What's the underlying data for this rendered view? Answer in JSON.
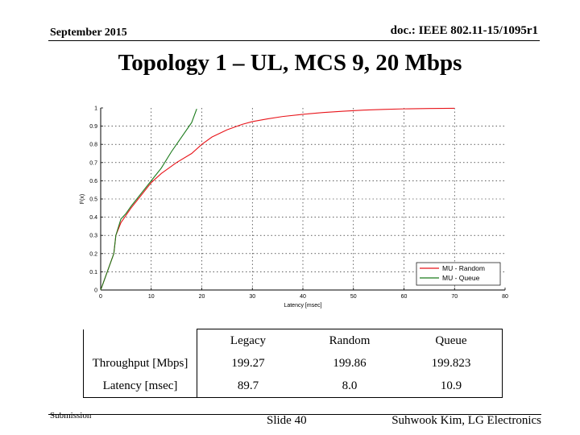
{
  "header": {
    "date": "September 2015",
    "doc": "doc.: IEEE 802.11-15/1095r1"
  },
  "title": "Topology 1 – UL, MCS 9, 20 Mbps",
  "chart_data": {
    "type": "line",
    "xlabel": "Latency [msec]",
    "ylabel": "F(x)",
    "xlim": [
      0,
      80
    ],
    "ylim": [
      0,
      1
    ],
    "xticks": [
      "0",
      "10",
      "20",
      "30",
      "40",
      "50",
      "60",
      "70",
      "80"
    ],
    "yticks": [
      "0",
      "0.1",
      "0.2",
      "0.3",
      "0.4",
      "0.5",
      "0.6",
      "0.7",
      "0.8",
      "0.9",
      "1"
    ],
    "grid": true,
    "legend_position": "bottom-right",
    "series": [
      {
        "name": "MU - Random",
        "color": "#e8141a",
        "x": [
          0,
          2.6,
          3,
          4,
          5,
          6,
          8,
          10,
          12,
          15,
          18,
          20,
          22,
          25,
          28,
          30,
          33,
          36,
          40,
          44,
          48,
          52,
          56,
          60,
          65,
          70
        ],
        "y": [
          0,
          0.2,
          0.3,
          0.37,
          0.41,
          0.45,
          0.52,
          0.59,
          0.64,
          0.7,
          0.75,
          0.8,
          0.84,
          0.88,
          0.91,
          0.925,
          0.94,
          0.953,
          0.965,
          0.975,
          0.982,
          0.988,
          0.992,
          0.995,
          0.997,
          0.998
        ]
      },
      {
        "name": "MU - Queue",
        "color": "#1a7a1a",
        "x": [
          0,
          2.6,
          3,
          4,
          5,
          6,
          8,
          10,
          12,
          14,
          16,
          18,
          19
        ],
        "y": [
          0,
          0.2,
          0.3,
          0.39,
          0.42,
          0.46,
          0.53,
          0.6,
          0.67,
          0.76,
          0.84,
          0.92,
          0.995
        ]
      }
    ]
  },
  "table": {
    "headers": [
      "",
      "Legacy",
      "Random",
      "Queue"
    ],
    "rows": [
      {
        "label": "Throughput [Mbps]",
        "values": [
          "199.27",
          "199.86",
          "199.823"
        ]
      },
      {
        "label": "Latency [msec]",
        "values": [
          "89.7",
          "8.0",
          "10.9"
        ]
      }
    ]
  },
  "footer": {
    "left": "Submission",
    "center": "Slide 40",
    "right": "Suhwook Kim, LG Electronics"
  }
}
